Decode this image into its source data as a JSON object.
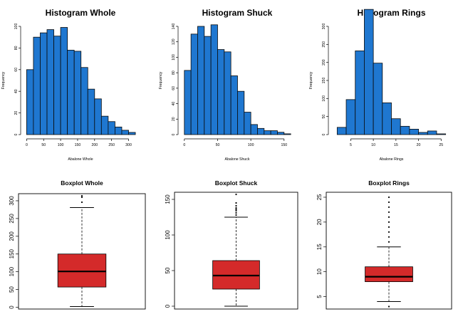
{
  "colors": {
    "hist_fill": "#1f77d0",
    "hist_stroke": "#0a0a0a",
    "box_fill": "#d42a2a",
    "axis": "#000000",
    "frame": "#000000"
  },
  "chart_data": [
    {
      "type": "bar",
      "subtype": "histogram",
      "title": "Histogram Whole",
      "xlabel": "Abalone Whole",
      "ylabel": "Frequency",
      "bin_edges": [
        0,
        20,
        40,
        60,
        80,
        100,
        120,
        140,
        160,
        180,
        200,
        220,
        240,
        260,
        280,
        300,
        320
      ],
      "values": [
        60,
        90,
        94,
        97,
        91,
        99,
        78,
        77,
        62,
        42,
        33,
        17,
        12,
        7,
        4,
        2
      ],
      "xlim": [
        -5,
        322
      ],
      "ylim": [
        0,
        100
      ],
      "xticks": [
        0,
        50,
        100,
        150,
        200,
        250,
        300
      ],
      "yticks": [
        0,
        20,
        40,
        60,
        80,
        100
      ],
      "grid": false
    },
    {
      "type": "bar",
      "subtype": "histogram",
      "title": "Histogram Shuck",
      "xlabel": "Abalone Shuck",
      "ylabel": "Frequency",
      "bin_edges": [
        0,
        10,
        20,
        30,
        40,
        50,
        60,
        70,
        80,
        90,
        100,
        110,
        120,
        130,
        140,
        150,
        160
      ],
      "values": [
        83,
        130,
        140,
        127,
        142,
        110,
        107,
        76,
        56,
        29,
        13,
        8,
        5,
        5,
        3,
        1
      ],
      "xlim": [
        -3,
        162
      ],
      "ylim": [
        0,
        140
      ],
      "xticks": [
        0,
        50,
        100,
        150
      ],
      "yticks": [
        0,
        20,
        40,
        60,
        80,
        100,
        120,
        140
      ],
      "grid": false
    },
    {
      "type": "bar",
      "subtype": "histogram",
      "title": "Histogram Rings",
      "xlabel": "Abalone Rings",
      "ylabel": "Frequency",
      "bin_edges": [
        2,
        4,
        6,
        8,
        10,
        12,
        14,
        16,
        18,
        20,
        22,
        24,
        26
      ],
      "values": [
        20,
        97,
        232,
        347,
        198,
        88,
        44,
        23,
        15,
        6,
        10,
        2
      ],
      "xlim": [
        1,
        27
      ],
      "ylim": [
        0,
        300
      ],
      "xticks": [
        5,
        10,
        15,
        20,
        25
      ],
      "yticks": [
        0,
        50,
        100,
        150,
        200,
        250,
        300
      ],
      "grid": false
    },
    {
      "type": "boxplot",
      "title": "Boxplot Whole",
      "stats": {
        "min": 2,
        "q1": 57,
        "median": 101,
        "q3": 150,
        "max": 281
      },
      "outliers": [
        296,
        310,
        314
      ],
      "ylim": [
        -5,
        320
      ],
      "yticks": [
        0,
        50,
        100,
        150,
        200,
        250,
        300
      ]
    },
    {
      "type": "boxplot",
      "title": "Boxplot Shuck",
      "stats": {
        "min": 0,
        "q1": 24,
        "median": 43,
        "q3": 64,
        "max": 125
      },
      "outliers": [
        128,
        131,
        134,
        136,
        138,
        141,
        145,
        157
      ],
      "ylim": [
        -4,
        160
      ],
      "yticks": [
        0,
        50,
        100,
        150
      ]
    },
    {
      "type": "boxplot",
      "title": "Boxplot Rings",
      "stats": {
        "min": 4,
        "q1": 8,
        "median": 9,
        "q3": 11,
        "max": 15
      },
      "outliers": [
        3,
        16,
        17,
        18,
        19,
        20,
        21,
        22,
        23,
        24,
        25
      ],
      "ylim": [
        2.5,
        26
      ],
      "yticks": [
        5,
        10,
        15,
        20,
        25
      ]
    }
  ]
}
